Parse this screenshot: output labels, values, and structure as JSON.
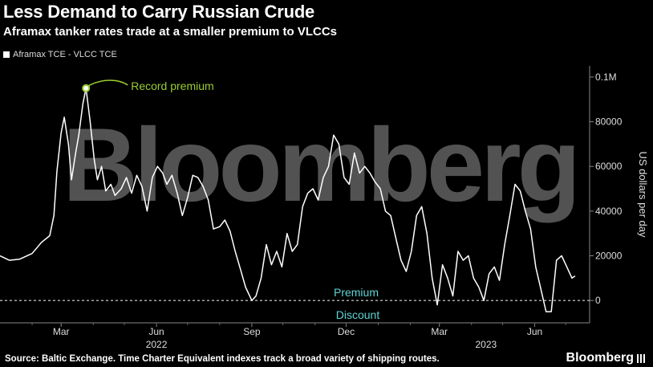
{
  "header": {
    "title": "Less Demand to Carry Russian Crude",
    "subtitle": "Aframax tanker rates trade at a smaller premium to VLCCs"
  },
  "footer": {
    "source": "Source: Baltic Exchange. Time Charter Equivalent indexes track a broad variety of shipping routes.",
    "brand": "Bloomberg"
  },
  "watermark": "Bloomberg",
  "colors": {
    "background": "#000000",
    "line": "#ffffff",
    "annotation": "#9acd32",
    "label": "#5fd3d3"
  },
  "chart_data": {
    "type": "line",
    "series": [
      {
        "name": "Aframax TCE - VLCC TCE",
        "x": [
          "2022-01-01",
          "2022-01-10",
          "2022-01-20",
          "2022-02-01",
          "2022-02-10",
          "2022-02-18",
          "2022-02-22",
          "2022-02-25",
          "2022-03-01",
          "2022-03-04",
          "2022-03-08",
          "2022-03-11",
          "2022-03-15",
          "2022-03-18",
          "2022-03-22",
          "2022-03-25",
          "2022-03-29",
          "2022-04-02",
          "2022-04-05",
          "2022-04-09",
          "2022-04-13",
          "2022-04-18",
          "2022-04-22",
          "2022-04-28",
          "2022-05-03",
          "2022-05-08",
          "2022-05-13",
          "2022-05-18",
          "2022-05-23",
          "2022-05-28",
          "2022-06-02",
          "2022-06-07",
          "2022-06-11",
          "2022-06-16",
          "2022-06-21",
          "2022-06-26",
          "2022-07-01",
          "2022-07-06",
          "2022-07-11",
          "2022-07-16",
          "2022-07-21",
          "2022-07-26",
          "2022-08-01",
          "2022-08-06",
          "2022-08-11",
          "2022-08-16",
          "2022-08-21",
          "2022-08-26",
          "2022-09-01",
          "2022-09-05",
          "2022-09-10",
          "2022-09-15",
          "2022-09-20",
          "2022-09-25",
          "2022-09-30",
          "2022-10-05",
          "2022-10-10",
          "2022-10-15",
          "2022-10-20",
          "2022-10-25",
          "2022-10-30",
          "2022-11-04",
          "2022-11-09",
          "2022-11-14",
          "2022-11-19",
          "2022-11-24",
          "2022-11-29",
          "2022-12-04",
          "2022-12-09",
          "2022-12-14",
          "2022-12-19",
          "2022-12-24",
          "2022-12-29",
          "2023-01-03",
          "2023-01-08",
          "2023-01-13",
          "2023-01-18",
          "2023-01-23",
          "2023-01-28",
          "2023-02-02",
          "2023-02-07",
          "2023-02-12",
          "2023-02-17",
          "2023-02-22",
          "2023-02-27",
          "2023-03-04",
          "2023-03-09",
          "2023-03-14",
          "2023-03-19",
          "2023-03-24",
          "2023-03-29",
          "2023-04-03",
          "2023-04-08",
          "2023-04-13",
          "2023-04-18",
          "2023-04-23",
          "2023-04-28",
          "2023-05-03",
          "2023-05-08",
          "2023-05-13",
          "2023-05-18",
          "2023-05-23",
          "2023-05-28",
          "2023-06-02",
          "2023-06-07",
          "2023-06-12",
          "2023-06-17",
          "2023-06-22",
          "2023-06-27",
          "2023-07-02",
          "2023-07-07",
          "2023-07-10"
        ],
        "y": [
          20000,
          18000,
          18500,
          21000,
          26000,
          29000,
          38000,
          58000,
          75000,
          82000,
          70000,
          54000,
          66000,
          74000,
          88000,
          95000,
          80000,
          63000,
          54000,
          60000,
          49000,
          52000,
          47000,
          50000,
          55000,
          48000,
          56000,
          51000,
          40000,
          55000,
          60000,
          57000,
          52000,
          56000,
          48000,
          38000,
          46000,
          56000,
          55000,
          51000,
          45000,
          32000,
          33000,
          36000,
          31000,
          22000,
          14000,
          6000,
          0,
          2000,
          10000,
          25000,
          16000,
          22000,
          15000,
          30000,
          22000,
          25000,
          42000,
          48000,
          50000,
          45000,
          55000,
          60000,
          74000,
          70000,
          55000,
          52000,
          66000,
          57000,
          60000,
          57000,
          53000,
          50000,
          40000,
          38000,
          28000,
          18000,
          13000,
          22000,
          38000,
          42000,
          30000,
          10000,
          -2000,
          16000,
          10000,
          2000,
          22000,
          18000,
          20000,
          10000,
          6000,
          0,
          12000,
          15000,
          9000,
          25000,
          38000,
          52000,
          49000,
          40000,
          32000,
          15000,
          5000,
          -5000,
          -5000,
          18000,
          20000,
          15000,
          10000,
          11000
        ]
      }
    ],
    "xlabel": "",
    "ylabel": "US dollars per day",
    "ylim": [
      -10000,
      105000
    ],
    "xlim": [
      "2022-01-01",
      "2023-07-24"
    ],
    "y_ticks": [
      0,
      20000,
      40000,
      60000,
      80000,
      100000
    ],
    "y_tick_labels": [
      "0",
      "20000",
      "40000",
      "60000",
      "80000",
      "0.1M"
    ],
    "x_ticks": [
      "2022-03-01",
      "2022-06-01",
      "2022-09-01",
      "2022-12-01",
      "2023-03-01",
      "2023-06-01"
    ],
    "x_tick_labels": [
      "Mar",
      "Jun",
      "Sep",
      "Dec",
      "Mar",
      "Jun"
    ],
    "year_labels": [
      {
        "label": "2022",
        "at": "2022-06-01"
      },
      {
        "label": "2023",
        "at": "2023-04-15"
      }
    ],
    "annotations": {
      "record": {
        "text": "Record premium",
        "x": "2022-03-25",
        "y": 95000
      },
      "premium": "Premium",
      "discount": "Discount"
    },
    "legend_position": "top-left",
    "grid": false
  }
}
